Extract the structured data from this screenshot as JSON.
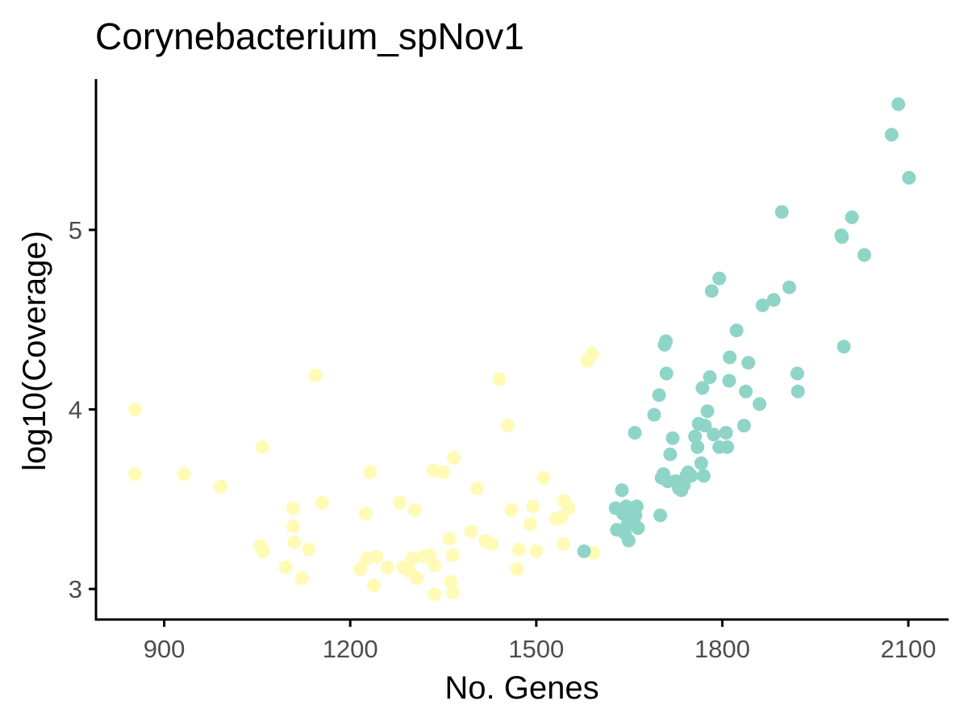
{
  "chart_data": {
    "type": "scatter",
    "title": "Corynebacterium_spNov1",
    "xlabel": "No. Genes",
    "ylabel": "log10(Coverage)",
    "xlim": [
      790,
      2165
    ],
    "ylim": [
      2.83,
      5.84
    ],
    "x_ticks": [
      900,
      1200,
      1500,
      1800,
      2100
    ],
    "y_ticks": [
      3,
      4,
      5
    ],
    "grid": false,
    "legend": "none",
    "colors": {
      "group_a": "#FFFBB7",
      "group_b": "#8FD5C7",
      "axis": "#000000",
      "tick_label": "#4D4D4D"
    },
    "series": [
      {
        "color": "#FFFBB7",
        "points": [
          [
            853,
            4.0
          ],
          [
            853,
            3.64
          ],
          [
            932,
            3.64
          ],
          [
            991,
            3.57
          ],
          [
            1058,
            3.79
          ],
          [
            1055,
            3.24
          ],
          [
            1060,
            3.21
          ],
          [
            1096,
            3.12
          ],
          [
            1108,
            3.45
          ],
          [
            1108,
            3.35
          ],
          [
            1110,
            3.26
          ],
          [
            1122,
            3.06
          ],
          [
            1133,
            3.22
          ],
          [
            1144,
            4.19
          ],
          [
            1155,
            3.48
          ],
          [
            1216,
            3.11
          ],
          [
            1225,
            3.42
          ],
          [
            1227,
            3.17
          ],
          [
            1232,
            3.65
          ],
          [
            1238,
            3.02
          ],
          [
            1242,
            3.18
          ],
          [
            1260,
            3.12
          ],
          [
            1280,
            3.48
          ],
          [
            1285,
            3.12
          ],
          [
            1295,
            3.1
          ],
          [
            1300,
            3.17
          ],
          [
            1304,
            3.44
          ],
          [
            1308,
            3.06
          ],
          [
            1318,
            3.18
          ],
          [
            1328,
            3.19
          ],
          [
            1334,
            3.66
          ],
          [
            1336,
            3.13
          ],
          [
            1336,
            2.97
          ],
          [
            1350,
            3.65
          ],
          [
            1360,
            3.28
          ],
          [
            1362,
            3.04
          ],
          [
            1365,
            3.19
          ],
          [
            1366,
            2.98
          ],
          [
            1367,
            3.73
          ],
          [
            1395,
            3.32
          ],
          [
            1405,
            3.56
          ],
          [
            1418,
            3.27
          ],
          [
            1428,
            3.25
          ],
          [
            1440,
            4.17
          ],
          [
            1454,
            3.91
          ],
          [
            1460,
            3.44
          ],
          [
            1469,
            3.11
          ],
          [
            1472,
            3.22
          ],
          [
            1490,
            3.36
          ],
          [
            1495,
            3.46
          ],
          [
            1500,
            3.21
          ],
          [
            1512,
            3.62
          ],
          [
            1532,
            3.39
          ],
          [
            1541,
            3.4
          ],
          [
            1544,
            3.25
          ],
          [
            1545,
            3.49
          ],
          [
            1552,
            3.45
          ],
          [
            1582,
            4.27
          ],
          [
            1590,
            4.31
          ],
          [
            1592,
            3.2
          ]
        ]
      },
      {
        "color": "#8FD5C7",
        "points": [
          [
            1577,
            3.21
          ],
          [
            1628,
            3.45
          ],
          [
            1630,
            3.33
          ],
          [
            1638,
            3.55
          ],
          [
            1640,
            3.42
          ],
          [
            1643,
            3.31
          ],
          [
            1645,
            3.46
          ],
          [
            1647,
            3.36
          ],
          [
            1649,
            3.27
          ],
          [
            1650,
            3.39
          ],
          [
            1653,
            3.4
          ],
          [
            1655,
            3.43
          ],
          [
            1657,
            3.38
          ],
          [
            1659,
            3.87
          ],
          [
            1660,
            3.41
          ],
          [
            1662,
            3.46
          ],
          [
            1664,
            3.34
          ],
          [
            1690,
            3.97
          ],
          [
            1698,
            4.08
          ],
          [
            1700,
            3.41
          ],
          [
            1702,
            3.62
          ],
          [
            1705,
            3.64
          ],
          [
            1707,
            4.36
          ],
          [
            1709,
            4.38
          ],
          [
            1710,
            4.2
          ],
          [
            1712,
            3.6
          ],
          [
            1716,
            3.75
          ],
          [
            1720,
            3.84
          ],
          [
            1725,
            3.6
          ],
          [
            1730,
            3.56
          ],
          [
            1734,
            3.55
          ],
          [
            1738,
            3.58
          ],
          [
            1742,
            3.63
          ],
          [
            1745,
            3.65
          ],
          [
            1750,
            3.63
          ],
          [
            1756,
            3.85
          ],
          [
            1760,
            3.79
          ],
          [
            1762,
            3.92
          ],
          [
            1766,
            3.7
          ],
          [
            1768,
            4.12
          ],
          [
            1770,
            3.63
          ],
          [
            1772,
            3.91
          ],
          [
            1776,
            3.99
          ],
          [
            1780,
            4.18
          ],
          [
            1783,
            4.66
          ],
          [
            1786,
            3.86
          ],
          [
            1795,
            4.73
          ],
          [
            1795,
            3.79
          ],
          [
            1806,
            3.87
          ],
          [
            1808,
            3.79
          ],
          [
            1811,
            4.16
          ],
          [
            1812,
            4.29
          ],
          [
            1823,
            4.44
          ],
          [
            1835,
            3.91
          ],
          [
            1838,
            4.1
          ],
          [
            1842,
            4.26
          ],
          [
            1860,
            4.03
          ],
          [
            1865,
            4.58
          ],
          [
            1883,
            4.61
          ],
          [
            1896,
            5.1
          ],
          [
            1908,
            4.68
          ],
          [
            1921,
            4.2
          ],
          [
            1922,
            4.1
          ],
          [
            1992,
            4.97
          ],
          [
            1993,
            4.96
          ],
          [
            1996,
            4.35
          ],
          [
            2009,
            5.07
          ],
          [
            2029,
            4.86
          ],
          [
            2073,
            5.53
          ],
          [
            2084,
            5.7
          ],
          [
            2101,
            5.29
          ]
        ]
      }
    ]
  }
}
